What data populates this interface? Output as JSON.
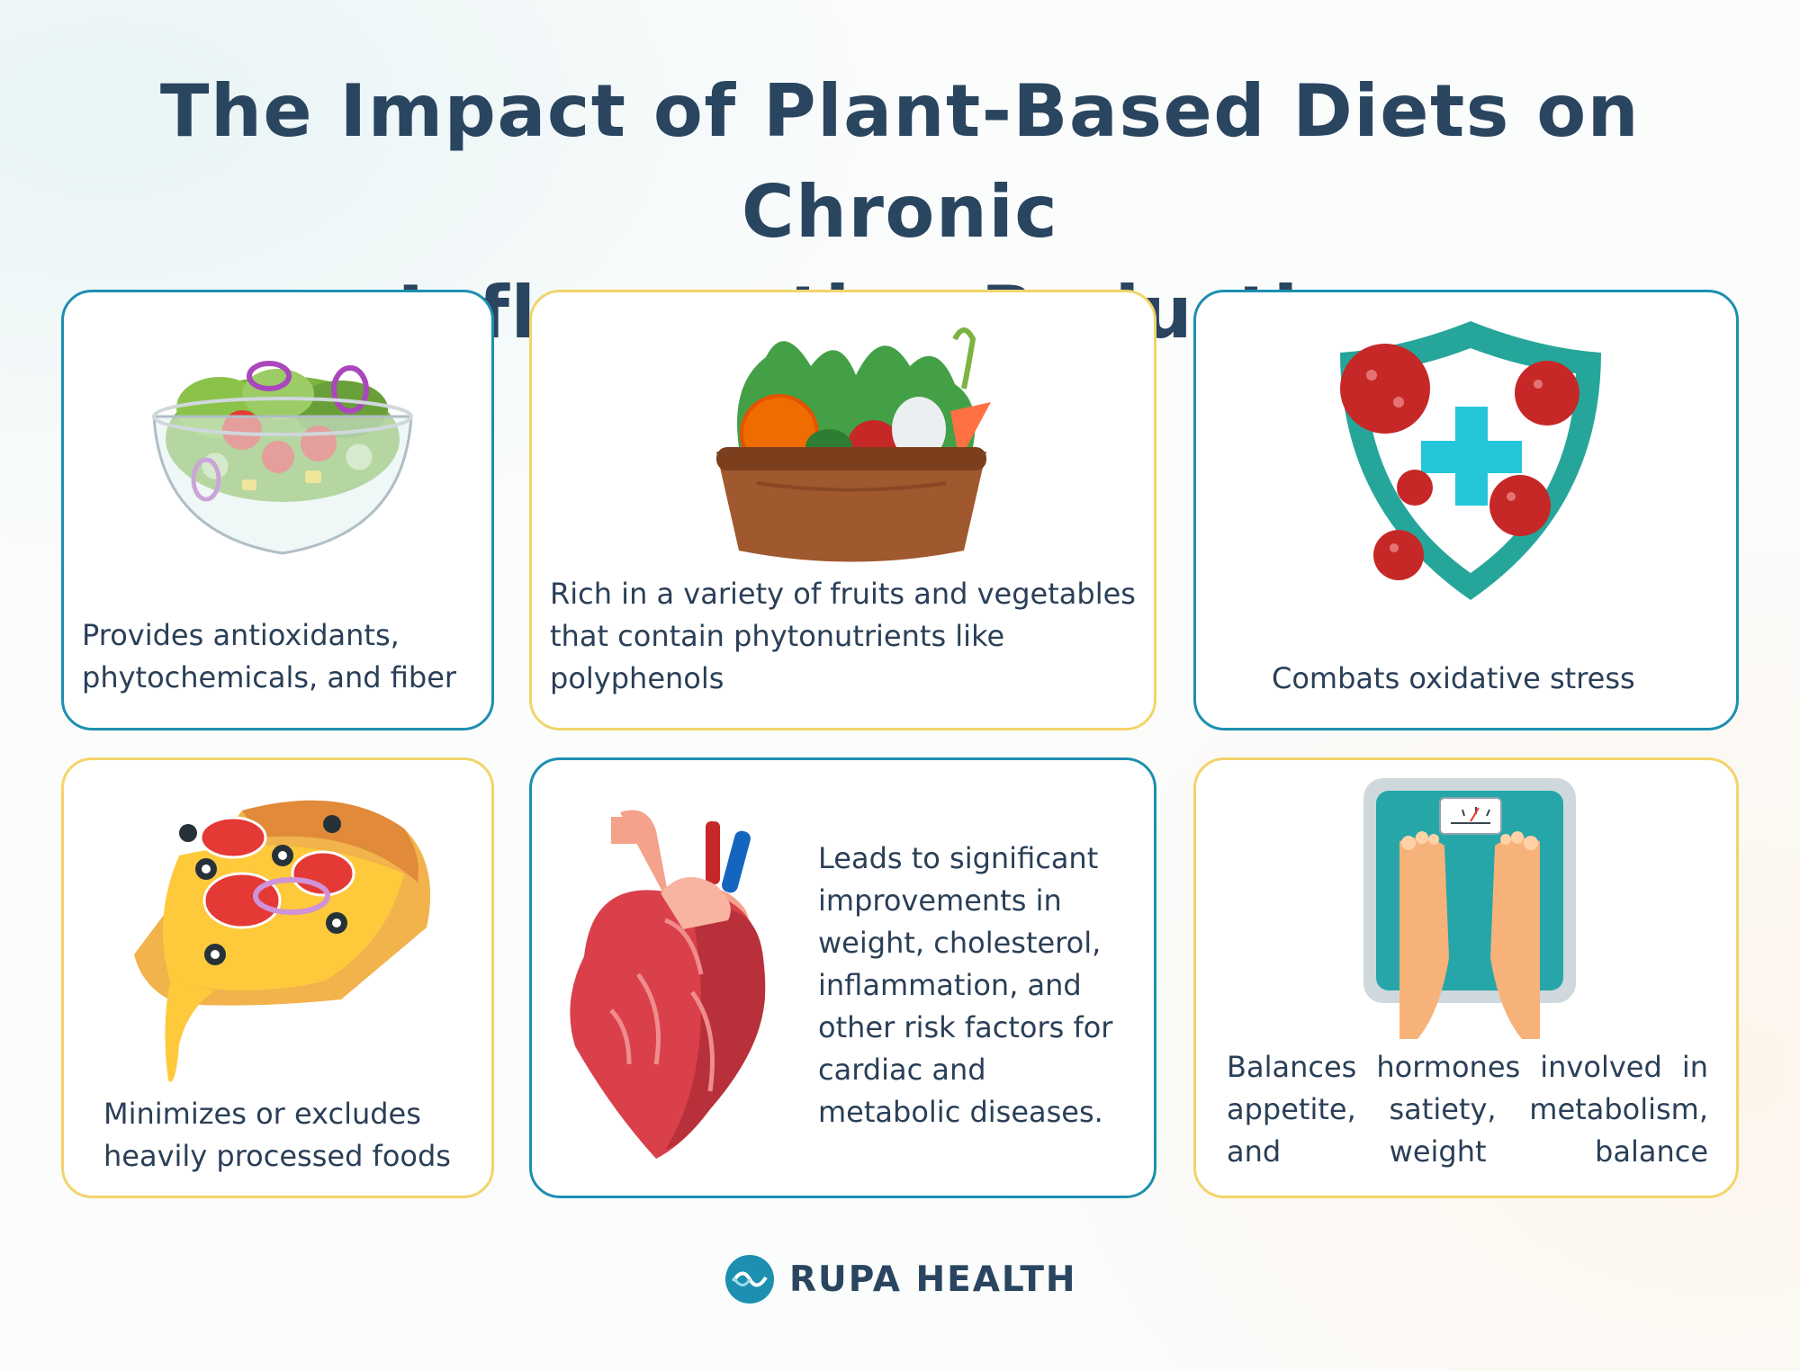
{
  "title": {
    "line1": "The Impact of Plant-Based Diets on Chronic",
    "line2": "Inflammation Reduction"
  },
  "cards": [
    {
      "text": "Provides antioxidants, phytochemicals, and fiber",
      "icon": "salad-bowl-icon",
      "border": "#1d8fb0"
    },
    {
      "text": "Rich in a variety of fruits and vegetables that contain phytonutrients like polyphenols",
      "icon": "vegetable-basket-icon",
      "border": "#f3d46a"
    },
    {
      "text": "Combats oxidative stress",
      "icon": "virus-shield-icon",
      "border": "#1d8fb0"
    },
    {
      "text": "Minimizes or excludes heavily processed foods",
      "icon": "pizza-slice-icon",
      "border": "#f3d46a"
    },
    {
      "text": "Leads to significant improvements in weight, cholesterol, inflammation, and other risk factors for cardiac and metabolic diseases.",
      "icon": "heart-icon",
      "border": "#1d8fb0"
    },
    {
      "text": "Balances hormones involved in appetite, satiety, metabolism, and weight balance",
      "icon": "bathroom-scale-icon",
      "border": "#f3d46a"
    }
  ],
  "brand": {
    "name": "RUPA HEALTH",
    "icon": "rupa-health-logo-icon"
  },
  "colors": {
    "title": "#2a4560",
    "teal_border": "#1d8fb0",
    "yellow_border": "#f3d46a",
    "text": "#2a3f57"
  }
}
